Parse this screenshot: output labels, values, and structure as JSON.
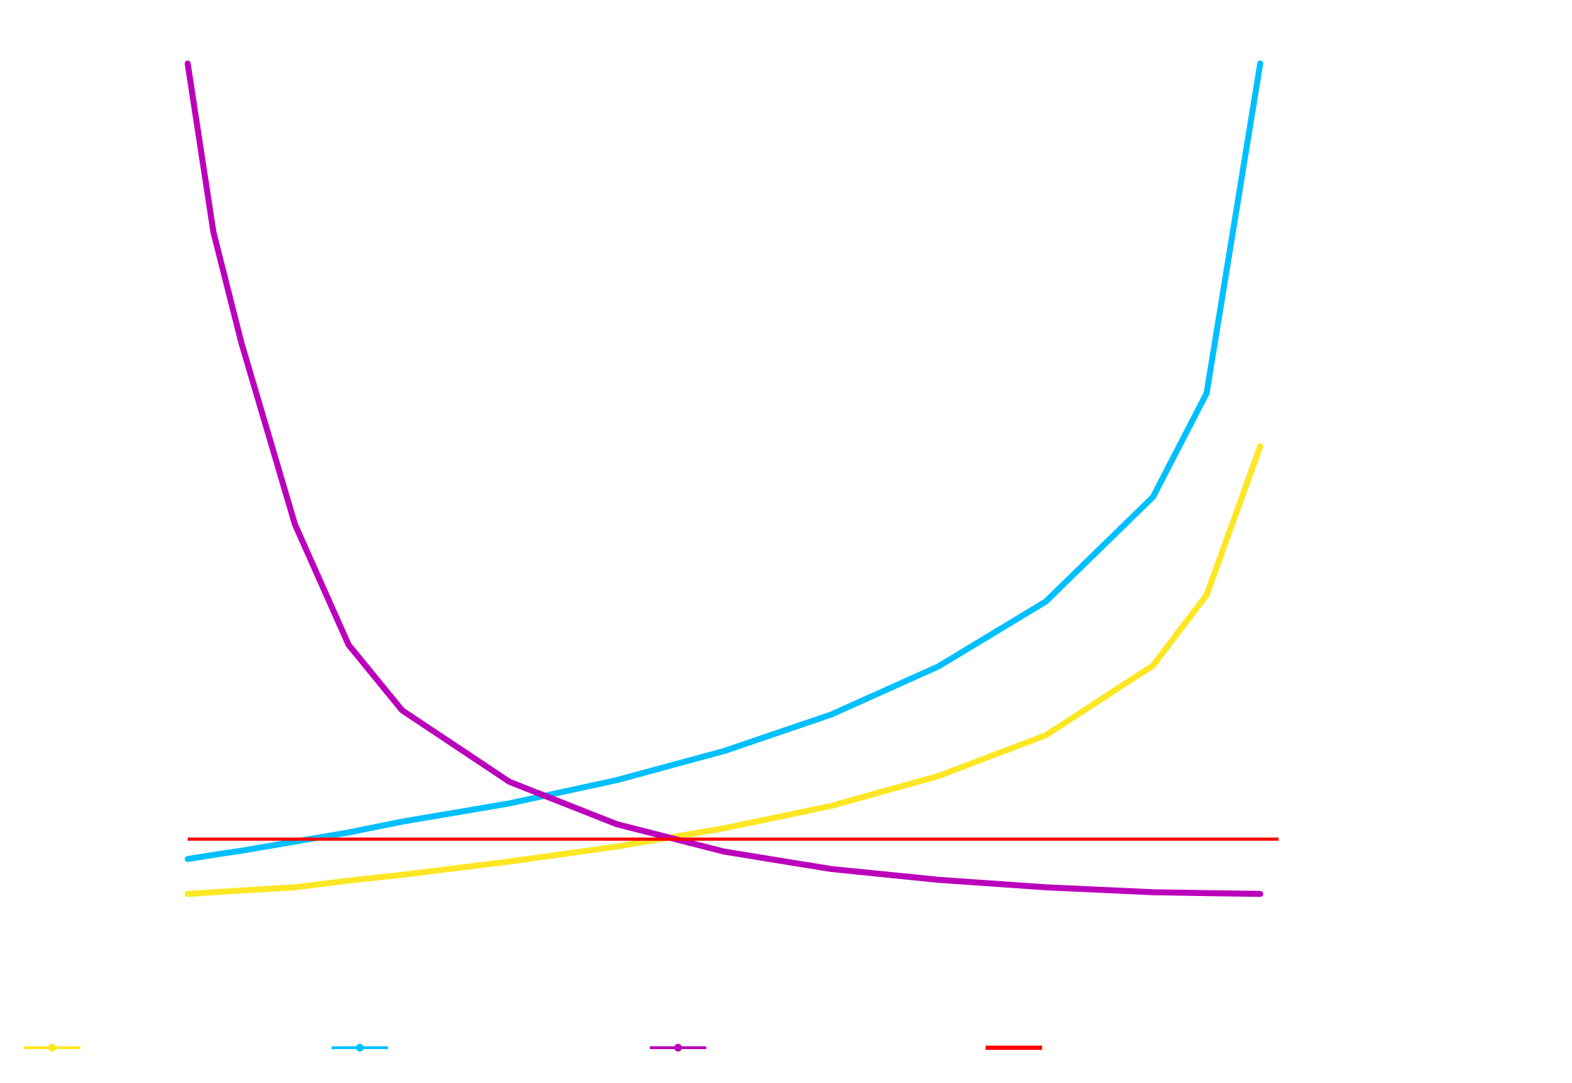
{
  "chart_data": {
    "type": "line",
    "x": [
      0,
      2.4,
      5,
      10,
      15,
      20,
      30,
      40,
      50,
      60,
      70,
      80,
      90,
      95,
      100,
      101.7
    ],
    "xlim": [
      0,
      101.7
    ],
    "ylim": [
      0,
      100
    ],
    "series": [
      {
        "color": "#fde725",
        "marker": true,
        "values": [
          0,
          0.2,
          0.4,
          0.8,
          1.6,
          2.3,
          3.9,
          5.7,
          7.9,
          10.6,
          14.2,
          19.1,
          27.5,
          36,
          53.9,
          null
        ]
      },
      {
        "color": "#00bfff",
        "marker": true,
        "values": [
          4.2,
          4.7,
          5.2,
          6.3,
          7.4,
          8.7,
          10.9,
          13.7,
          17.2,
          21.6,
          27.4,
          35.2,
          47.8,
          60.3,
          100,
          null
        ]
      },
      {
        "color": "#bb00bb",
        "marker": true,
        "values": [
          100,
          79.7,
          66.4,
          44.5,
          30,
          22.1,
          13.5,
          8.4,
          5.1,
          3,
          1.7,
          0.8,
          0.2,
          0.1,
          0,
          null
        ]
      },
      {
        "color": "#ff0000",
        "marker": false,
        "values": [
          6.6,
          6.6,
          6.6,
          6.6,
          6.6,
          6.6,
          6.6,
          6.6,
          6.6,
          6.6,
          6.6,
          6.6,
          6.6,
          6.6,
          6.6,
          6.6
        ]
      }
    ]
  }
}
